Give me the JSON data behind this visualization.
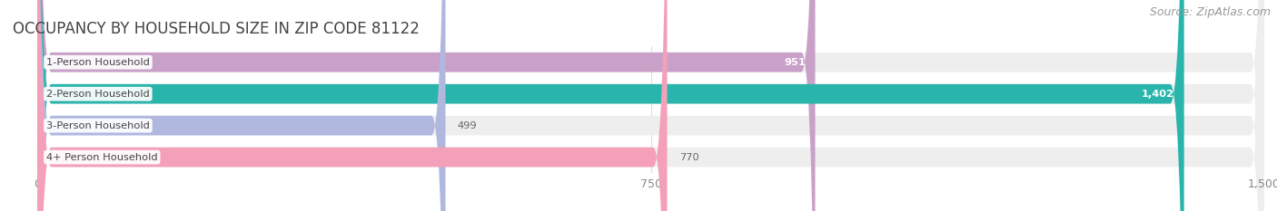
{
  "title": "OCCUPANCY BY HOUSEHOLD SIZE IN ZIP CODE 81122",
  "source": "Source: ZipAtlas.com",
  "categories": [
    "1-Person Household",
    "2-Person Household",
    "3-Person Household",
    "4+ Person Household"
  ],
  "values": [
    951,
    1402,
    499,
    770
  ],
  "bar_colors": [
    "#c9a0c8",
    "#2ab5ac",
    "#b0b8e0",
    "#f4a0b8"
  ],
  "background_color": "#ffffff",
  "bar_bg_color": "#eeeeee",
  "xlim_min": -30,
  "xlim_max": 1500,
  "xticks": [
    0,
    750,
    1500
  ],
  "label_color_inside": [
    "#ffffff",
    "#ffffff",
    "#666666",
    "#666666"
  ],
  "title_fontsize": 12,
  "source_fontsize": 9,
  "bar_height": 0.62
}
